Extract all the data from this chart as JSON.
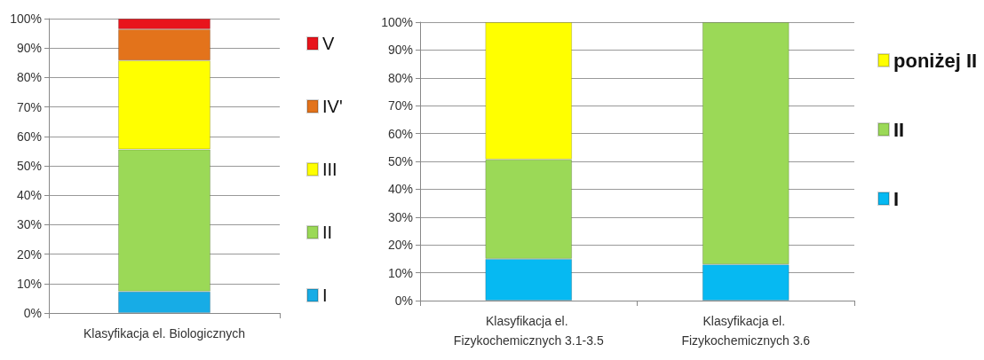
{
  "chart_data": [
    {
      "type": "bar",
      "stacked": true,
      "categories": [
        "Klasyfikacja el. Biologicznych"
      ],
      "series": [
        {
          "name": "I",
          "color": "#17ace6",
          "values": [
            7.3
          ]
        },
        {
          "name": "II",
          "color": "#9bd957",
          "values": [
            48.3
          ]
        },
        {
          "name": "III",
          "color": "#ffff00",
          "values": [
            30.2
          ]
        },
        {
          "name": "IV'",
          "color": "#e3731b",
          "values": [
            10.6
          ]
        },
        {
          "name": "V",
          "color": "#e8141c",
          "values": [
            3.6
          ]
        }
      ],
      "ylim": [
        0,
        100
      ],
      "yticks": [
        {
          "value": 0,
          "label": "0%"
        },
        {
          "value": 10,
          "label": "10%"
        },
        {
          "value": 20,
          "label": "20%"
        },
        {
          "value": 30,
          "label": "30%"
        },
        {
          "value": 40,
          "label": "40%"
        },
        {
          "value": 50,
          "label": "50%"
        },
        {
          "value": 60,
          "label": "60%"
        },
        {
          "value": 70,
          "label": "70%"
        },
        {
          "value": 80,
          "label": "80%"
        },
        {
          "value": 90,
          "label": "90%"
        },
        {
          "value": 100,
          "label": "100%"
        }
      ],
      "grid": "y",
      "legend": "right"
    },
    {
      "type": "bar",
      "stacked": true,
      "categories": [
        "Klasyfikacja el. Fizykochemicznych 3.1-3.5",
        "Klasyfikacja el. Fizykochemicznych 3.6"
      ],
      "series": [
        {
          "name": "I",
          "color": "#06b9f2",
          "values": [
            15,
            13
          ]
        },
        {
          "name": "II",
          "color": "#9bd957",
          "values": [
            35.7,
            87
          ]
        },
        {
          "name": "poniżej II",
          "color": "#ffff00",
          "values": [
            49.3,
            null
          ]
        }
      ],
      "ylim": [
        0,
        100
      ],
      "yticks": [
        {
          "value": 0,
          "label": "0%"
        },
        {
          "value": 10,
          "label": "10%"
        },
        {
          "value": 20,
          "label": "20%"
        },
        {
          "value": 30,
          "label": "30%"
        },
        {
          "value": 40,
          "label": "40%"
        },
        {
          "value": 50,
          "label": "50%"
        },
        {
          "value": 60,
          "label": "60%"
        },
        {
          "value": 70,
          "label": "70%"
        },
        {
          "value": 80,
          "label": "80%"
        },
        {
          "value": 90,
          "label": "90%"
        },
        {
          "value": 100,
          "label": "100%"
        }
      ],
      "grid": "y",
      "legend": "right"
    }
  ]
}
